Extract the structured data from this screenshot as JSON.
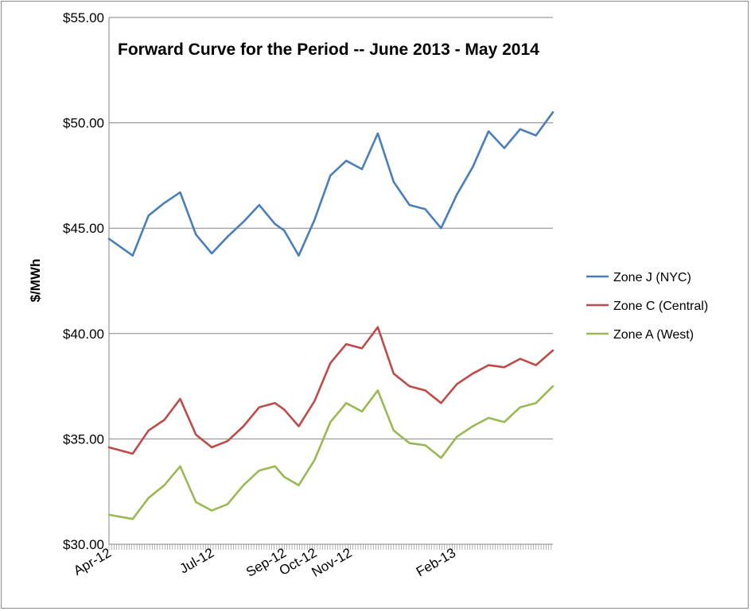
{
  "chart_data": {
    "type": "line",
    "title": "Forward Curve for the Period -- June 2013 - May 2014",
    "xlabel": "",
    "ylabel": "$/MWh",
    "ylim": [
      30,
      55
    ],
    "yticks": [
      "$30.00",
      "$35.00",
      "$40.00",
      "$45.00",
      "$50.00",
      "$55.00"
    ],
    "ytick_values": [
      30,
      35,
      40,
      45,
      50,
      55
    ],
    "xlim": [
      "2012-04-02",
      "2013-04-30"
    ],
    "xtick_labels": [
      "Apr-12",
      "Jul-12",
      "Sep-12",
      "Oct-12",
      "Nov-12",
      "Feb-13"
    ],
    "xtick_dates": [
      "2012-04-02",
      "2012-07-02",
      "2012-09-04",
      "2012-10-01",
      "2012-11-01",
      "2013-02-01"
    ],
    "grid": "horizontal",
    "legend": "right",
    "x": [
      "2012-04-02",
      "2012-04-23",
      "2012-05-07",
      "2012-05-21",
      "2012-06-04",
      "2012-06-18",
      "2012-07-02",
      "2012-07-16",
      "2012-07-30",
      "2012-08-13",
      "2012-08-27",
      "2012-09-04",
      "2012-09-17",
      "2012-10-01",
      "2012-10-15",
      "2012-10-29",
      "2012-11-12",
      "2012-11-26",
      "2012-12-10",
      "2012-12-24",
      "2013-01-07",
      "2013-01-21",
      "2013-02-04",
      "2013-02-18",
      "2013-03-04",
      "2013-03-18",
      "2013-04-01",
      "2013-04-15",
      "2013-04-30"
    ],
    "series": [
      {
        "name": "Zone J (NYC)",
        "color": "#4a7ebb",
        "values": [
          44.5,
          43.7,
          45.6,
          46.2,
          46.7,
          44.7,
          43.8,
          44.6,
          45.3,
          46.1,
          45.2,
          44.9,
          43.7,
          45.4,
          47.5,
          48.2,
          47.8,
          49.5,
          47.2,
          46.1,
          45.9,
          45.0,
          46.6,
          47.9,
          49.6,
          48.8,
          49.7,
          49.4,
          50.5
        ]
      },
      {
        "name": "Zone C (Central)",
        "color": "#be4b48",
        "values": [
          34.6,
          34.3,
          35.4,
          35.9,
          36.9,
          35.2,
          34.6,
          34.9,
          35.6,
          36.5,
          36.7,
          36.4,
          35.6,
          36.8,
          38.6,
          39.5,
          39.3,
          40.3,
          38.1,
          37.5,
          37.3,
          36.7,
          37.6,
          38.1,
          38.5,
          38.4,
          38.8,
          38.5,
          39.2
        ]
      },
      {
        "name": "Zone A (West)",
        "color": "#98b954",
        "values": [
          31.4,
          31.2,
          32.2,
          32.8,
          33.7,
          32.0,
          31.6,
          31.9,
          32.8,
          33.5,
          33.7,
          33.2,
          32.8,
          34.0,
          35.8,
          36.7,
          36.3,
          37.3,
          35.4,
          34.8,
          34.7,
          34.1,
          35.1,
          35.6,
          36.0,
          35.8,
          36.5,
          36.7,
          37.5
        ]
      }
    ]
  }
}
